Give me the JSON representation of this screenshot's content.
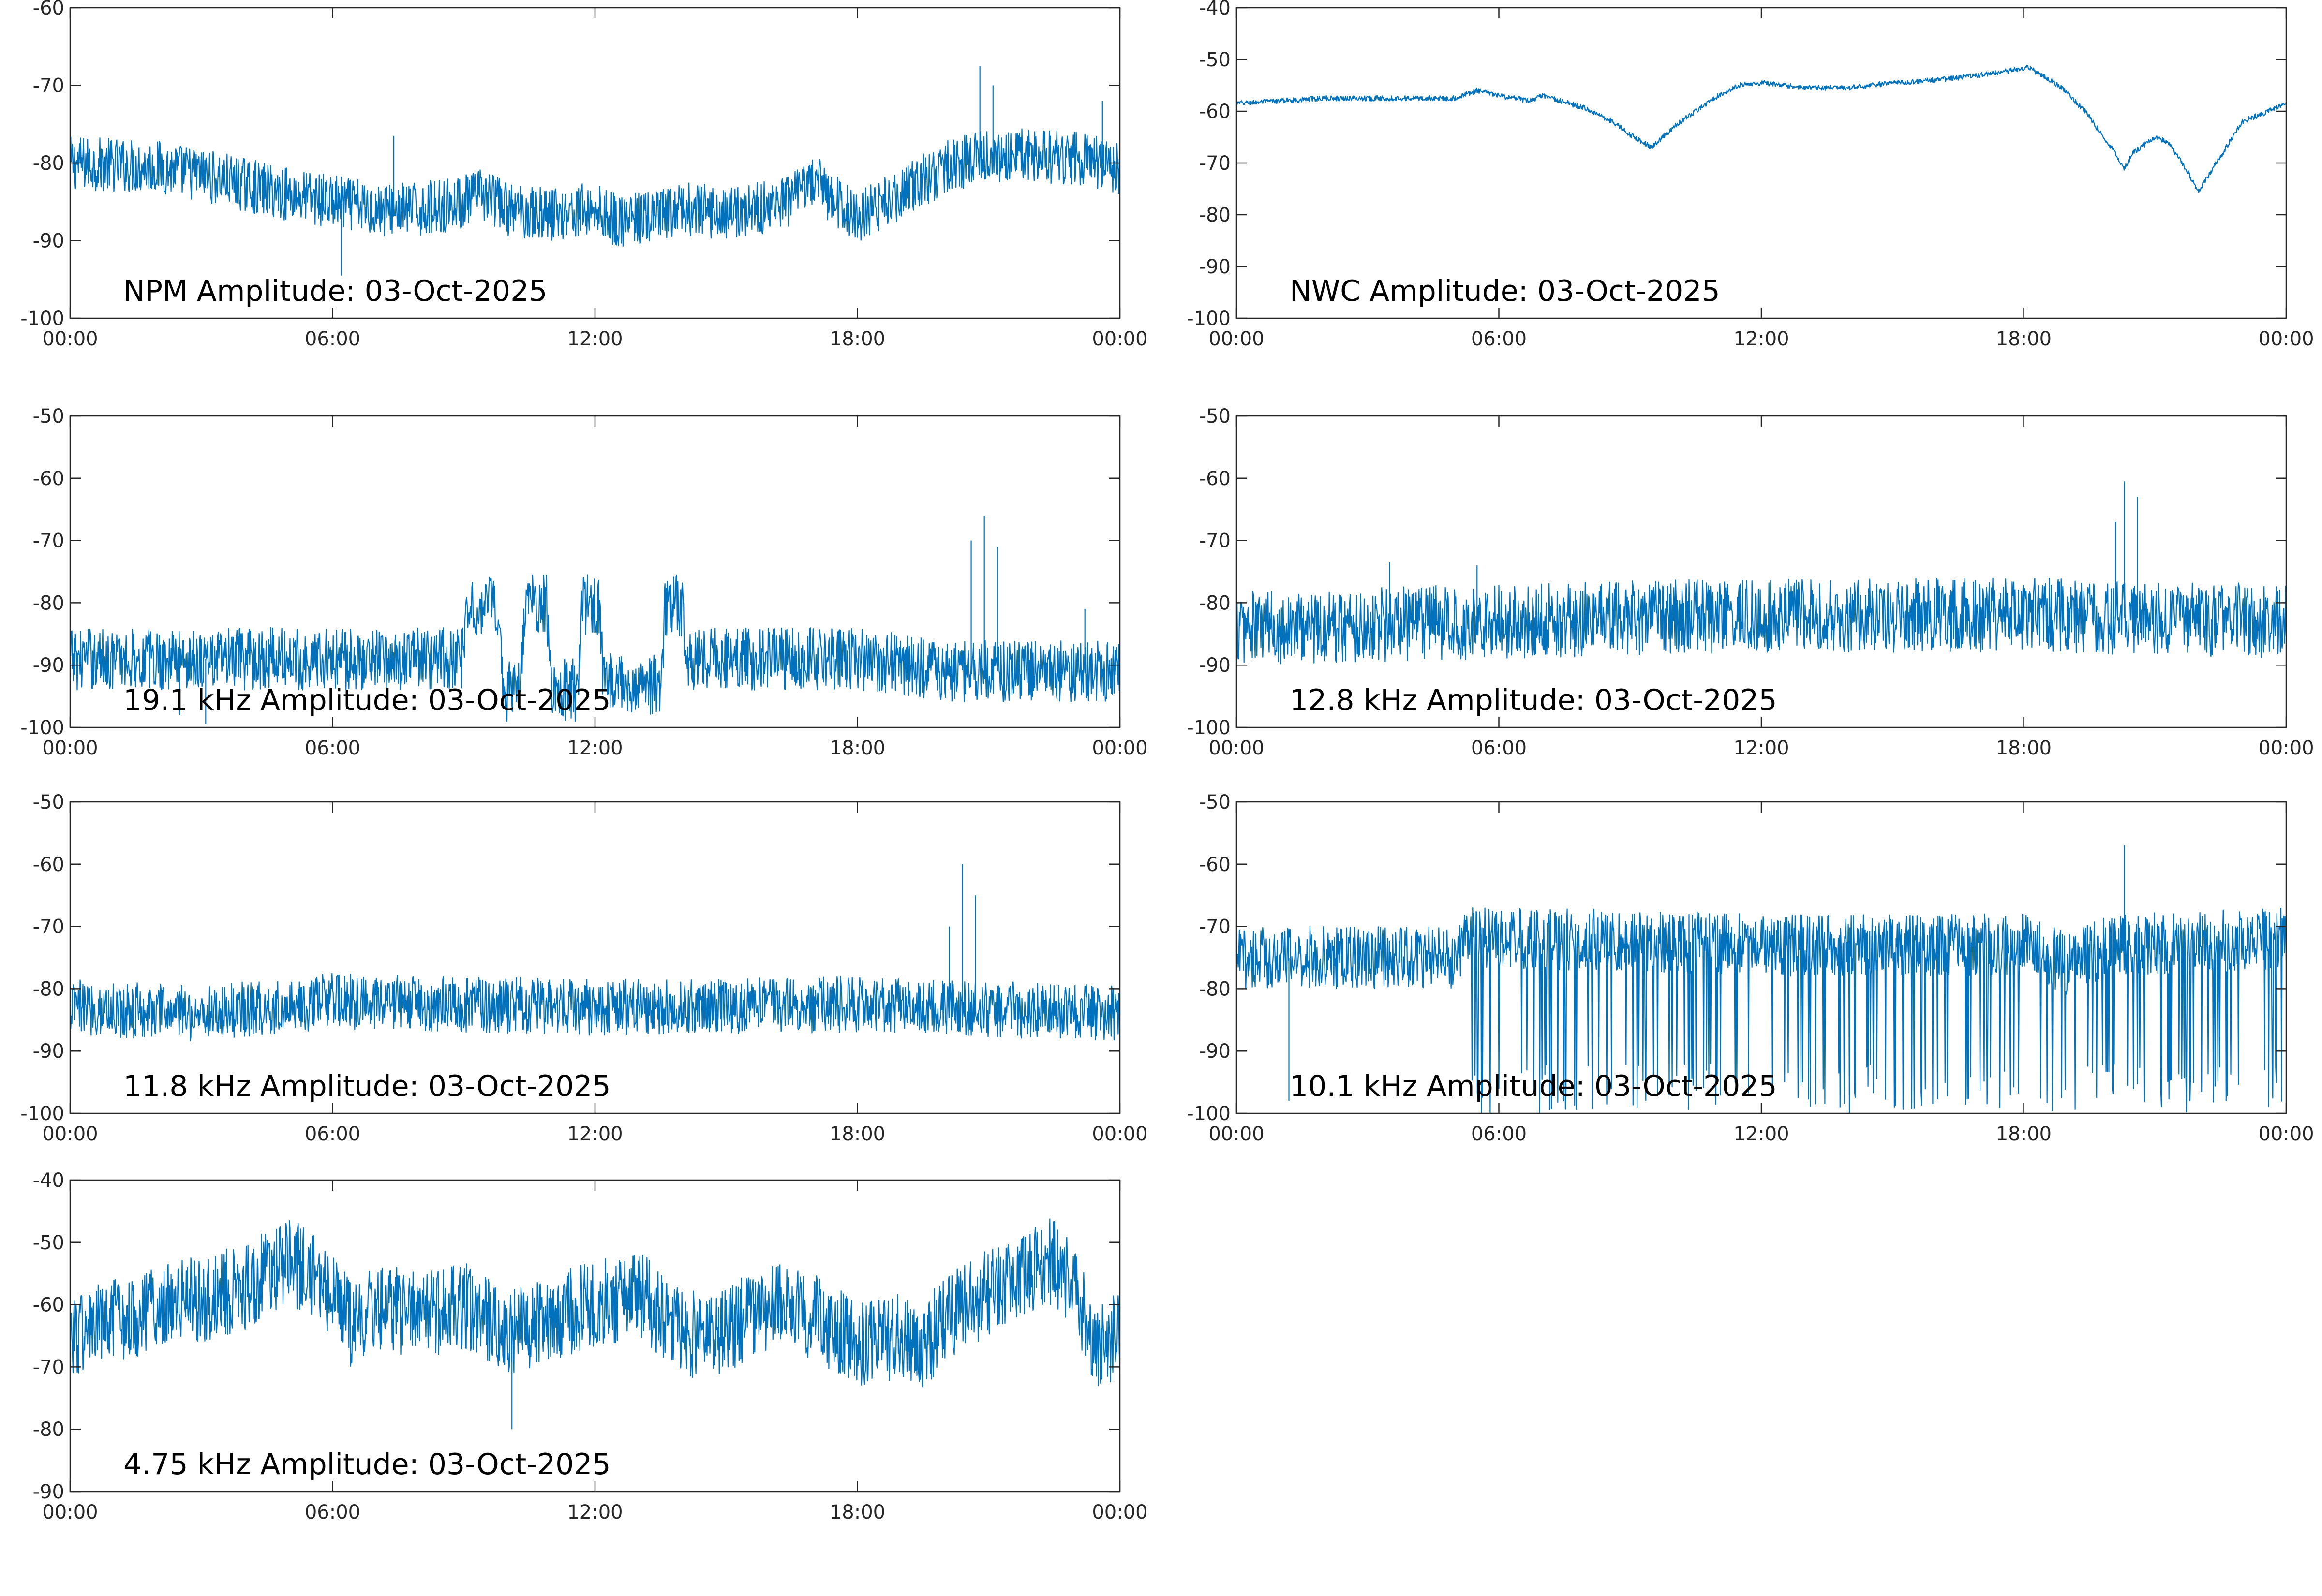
{
  "figure": {
    "line_color": "#0072BD",
    "axis_color": "#262626",
    "background": "#FFFFFF"
  },
  "chart_data": [
    {
      "type": "line",
      "id": "npm",
      "title": "NPM Amplitude: 03-Oct-2025",
      "xlabel": "",
      "ylabel": "",
      "x_range_hours": [
        0,
        24
      ],
      "xticks": [
        "00:00",
        "06:00",
        "12:00",
        "18:00",
        "00:00"
      ],
      "ylim": [
        -100,
        -60
      ],
      "yticks": [
        -60,
        -70,
        -80,
        -90,
        -100
      ],
      "grid": false,
      "series": [
        {
          "name": "NPM",
          "noise_amplitude": 3.5,
          "points": [
            [
              0,
              -80
            ],
            [
              2,
              -80.5
            ],
            [
              3,
              -81.5
            ],
            [
              4.5,
              -83.5
            ],
            [
              6,
              -85
            ],
            [
              7,
              -86
            ],
            [
              8,
              -86
            ],
            [
              9,
              -85
            ],
            [
              9.5,
              -84
            ],
            [
              10,
              -86
            ],
            [
              11,
              -86.5
            ],
            [
              12,
              -86
            ],
            [
              12.5,
              -87.5
            ],
            [
              13.5,
              -87
            ],
            [
              14,
              -86
            ],
            [
              15,
              -86.5
            ],
            [
              16.5,
              -85
            ],
            [
              17,
              -82
            ],
            [
              17.5,
              -85
            ],
            [
              18,
              -87
            ],
            [
              19,
              -84
            ],
            [
              20,
              -80.5
            ],
            [
              21,
              -79
            ],
            [
              22,
              -79
            ],
            [
              23,
              -79.5
            ],
            [
              24,
              -80.5
            ]
          ],
          "spikes": [
            [
              20.8,
              -67.5
            ],
            [
              21.1,
              -70
            ],
            [
              23.6,
              -72
            ],
            [
              6.2,
              -94.5
            ],
            [
              7.4,
              -76.5
            ]
          ]
        }
      ]
    },
    {
      "type": "line",
      "id": "nwc",
      "title": "NWC Amplitude: 03-Oct-2025",
      "xlabel": "",
      "ylabel": "",
      "x_range_hours": [
        0,
        24
      ],
      "xticks": [
        "00:00",
        "06:00",
        "12:00",
        "18:00",
        "00:00"
      ],
      "ylim": [
        -100,
        -40
      ],
      "yticks": [
        -40,
        -50,
        -60,
        -70,
        -80,
        -90,
        -100
      ],
      "grid": false,
      "series": [
        {
          "name": "NWC",
          "noise_amplitude": 0.5,
          "points": [
            [
              0,
              -58.5
            ],
            [
              2,
              -57.5
            ],
            [
              4,
              -57.5
            ],
            [
              5,
              -57.5
            ],
            [
              5.5,
              -56
            ],
            [
              6,
              -57
            ],
            [
              6.7,
              -58
            ],
            [
              7,
              -57
            ],
            [
              8,
              -59.5
            ],
            [
              8.6,
              -62
            ],
            [
              9,
              -64.5
            ],
            [
              9.5,
              -67
            ],
            [
              10,
              -63
            ],
            [
              11,
              -57
            ],
            [
              11.5,
              -55
            ],
            [
              12,
              -54.5
            ],
            [
              13,
              -55.5
            ],
            [
              14,
              -55.5
            ],
            [
              15,
              -54.5
            ],
            [
              16,
              -54
            ],
            [
              17,
              -53
            ],
            [
              17.8,
              -52
            ],
            [
              18.1,
              -51.5
            ],
            [
              18.8,
              -55
            ],
            [
              19.4,
              -60
            ],
            [
              20,
              -67
            ],
            [
              20.3,
              -71
            ],
            [
              20.5,
              -68
            ],
            [
              21,
              -65
            ],
            [
              21.3,
              -66
            ],
            [
              21.7,
              -71
            ],
            [
              22,
              -75.5
            ],
            [
              22.4,
              -70
            ],
            [
              23,
              -62
            ],
            [
              23.6,
              -60
            ],
            [
              24,
              -58.5
            ]
          ],
          "spikes": []
        }
      ]
    },
    {
      "type": "line",
      "id": "f19_1",
      "title": "19.1 kHz Amplitude: 03-Oct-2025",
      "xlabel": "",
      "ylabel": "",
      "x_range_hours": [
        0,
        24
      ],
      "xticks": [
        "00:00",
        "06:00",
        "12:00",
        "18:00",
        "00:00"
      ],
      "ylim": [
        -100,
        -50
      ],
      "yticks": [
        -50,
        -60,
        -70,
        -80,
        -90,
        -100
      ],
      "grid": false,
      "series": [
        {
          "name": "19.1 kHz",
          "noise_amplitude": 5,
          "points": [
            [
              0,
              -89
            ],
            [
              6,
              -89
            ],
            [
              9,
              -89
            ],
            [
              9.1,
              -80.5
            ],
            [
              9.8,
              -80.5
            ],
            [
              9.9,
              -94
            ],
            [
              10.3,
              -94
            ],
            [
              10.4,
              -80.5
            ],
            [
              10.9,
              -80.5
            ],
            [
              11,
              -94
            ],
            [
              11.6,
              -94
            ],
            [
              11.7,
              -80.5
            ],
            [
              12.1,
              -80.5
            ],
            [
              12.2,
              -93
            ],
            [
              13.5,
              -93
            ],
            [
              13.6,
              -80.5
            ],
            [
              14,
              -80.5
            ],
            [
              14.1,
              -89
            ],
            [
              18,
              -89
            ],
            [
              20,
              -91
            ],
            [
              24,
              -91
            ]
          ],
          "spikes": [
            [
              20.9,
              -66
            ],
            [
              20.6,
              -70
            ],
            [
              21.2,
              -71
            ],
            [
              23.2,
              -81
            ],
            [
              2.5,
              -98
            ],
            [
              3.1,
              -99.5
            ]
          ]
        }
      ]
    },
    {
      "type": "line",
      "id": "f12_8",
      "title": "12.8 kHz Amplitude: 03-Oct-2025",
      "xlabel": "",
      "ylabel": "",
      "x_range_hours": [
        0,
        24
      ],
      "xticks": [
        "00:00",
        "06:00",
        "12:00",
        "18:00",
        "00:00"
      ],
      "ylim": [
        -100,
        -50
      ],
      "yticks": [
        -50,
        -60,
        -70,
        -80,
        -90,
        -100
      ],
      "grid": false,
      "series": [
        {
          "name": "12.8 kHz",
          "noise_amplitude": 6,
          "points": [
            [
              0,
              -84
            ],
            [
              6,
              -83
            ],
            [
              12,
              -82
            ],
            [
              18,
              -82
            ],
            [
              24,
              -83
            ]
          ],
          "spikes": [
            [
              20.3,
              -60.5
            ],
            [
              20.6,
              -63
            ],
            [
              20.1,
              -67
            ],
            [
              3.5,
              -73.5
            ],
            [
              5.5,
              -74
            ]
          ]
        }
      ]
    },
    {
      "type": "line",
      "id": "f11_8",
      "title": "11.8 kHz Amplitude: 03-Oct-2025",
      "xlabel": "",
      "ylabel": "",
      "x_range_hours": [
        0,
        24
      ],
      "xticks": [
        "00:00",
        "06:00",
        "12:00",
        "18:00",
        "00:00"
      ],
      "ylim": [
        -100,
        -50
      ],
      "yticks": [
        -50,
        -60,
        -70,
        -80,
        -90,
        -100
      ],
      "grid": false,
      "series": [
        {
          "name": "11.8 kHz",
          "noise_amplitude": 4.5,
          "points": [
            [
              0,
              -83
            ],
            [
              3,
              -84
            ],
            [
              6,
              -82
            ],
            [
              12,
              -83
            ],
            [
              18,
              -82.5
            ],
            [
              24,
              -84
            ]
          ],
          "spikes": [
            [
              20.4,
              -60
            ],
            [
              20.7,
              -65
            ],
            [
              20.1,
              -70
            ]
          ]
        }
      ]
    },
    {
      "type": "line",
      "id": "f10_1",
      "title": "10.1 kHz Amplitude: 03-Oct-2025",
      "xlabel": "",
      "ylabel": "",
      "x_range_hours": [
        0,
        24
      ],
      "xticks": [
        "00:00",
        "06:00",
        "12:00",
        "18:00",
        "00:00"
      ],
      "ylim": [
        -100,
        -50
      ],
      "yticks": [
        -50,
        -60,
        -70,
        -80,
        -90,
        -100
      ],
      "grid": false,
      "series": [
        {
          "name": "10.1 kHz",
          "noise_amplitude": 5,
          "points": [
            [
              0,
              -75
            ],
            [
              5,
              -75
            ],
            [
              5.2,
              -72
            ],
            [
              8,
              -72
            ],
            [
              12,
              -73
            ],
            [
              18,
              -73
            ],
            [
              19,
              -76
            ],
            [
              20,
              -73
            ],
            [
              24,
              -72
            ]
          ],
          "dropouts_from_hour": 5.3,
          "dropout_low": -100,
          "spikes": [
            [
              20.3,
              -57
            ],
            [
              1.2,
              -98
            ]
          ]
        }
      ]
    },
    {
      "type": "line",
      "id": "f4_75",
      "title": "4.75 kHz Amplitude: 03-Oct-2025",
      "xlabel": "",
      "ylabel": "",
      "x_range_hours": [
        0,
        24
      ],
      "xticks": [
        "00:00",
        "06:00",
        "12:00",
        "18:00",
        "00:00"
      ],
      "ylim": [
        -90,
        -40
      ],
      "yticks": [
        -40,
        -50,
        -60,
        -70,
        -80,
        -90
      ],
      "grid": false,
      "series": [
        {
          "name": "4.75 kHz",
          "noise_amplitude": 7,
          "points": [
            [
              0,
              -65
            ],
            [
              1,
              -63
            ],
            [
              2,
              -60
            ],
            [
              3,
              -59
            ],
            [
              4,
              -57
            ],
            [
              4.5,
              -55
            ],
            [
              5,
              -53
            ],
            [
              5.5,
              -55
            ],
            [
              6,
              -58
            ],
            [
              6.5,
              -64
            ],
            [
              7,
              -60
            ],
            [
              8,
              -62
            ],
            [
              9,
              -60
            ],
            [
              10,
              -65
            ],
            [
              11,
              -62
            ],
            [
              12,
              -60
            ],
            [
              13,
              -58
            ],
            [
              14,
              -65
            ],
            [
              15,
              -64
            ],
            [
              16,
              -60
            ],
            [
              17,
              -62
            ],
            [
              18,
              -66
            ],
            [
              19,
              -65
            ],
            [
              19.5,
              -67
            ],
            [
              20,
              -62
            ],
            [
              21,
              -58
            ],
            [
              22,
              -54
            ],
            [
              22.5,
              -53
            ],
            [
              23,
              -58
            ],
            [
              23.5,
              -67
            ],
            [
              24,
              -65
            ]
          ],
          "spikes": [
            [
              22.2,
              -48
            ],
            [
              10.1,
              -80
            ]
          ]
        }
      ]
    }
  ]
}
